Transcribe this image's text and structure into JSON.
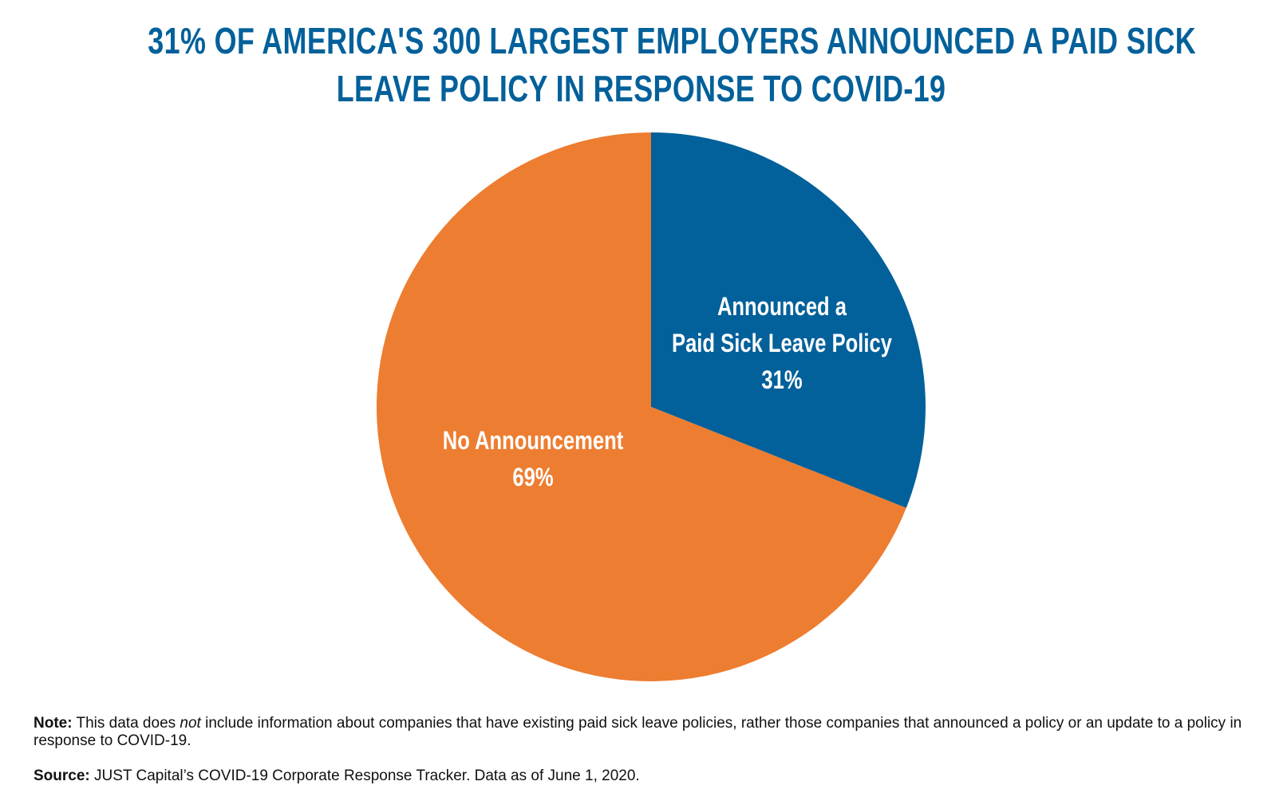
{
  "chart_data": {
    "type": "pie",
    "title": [
      "31% OF AMERICA'S 300 LARGEST EMPLOYERS ANNOUNCED A PAID SICK",
      "LEAVE POLICY IN RESPONSE TO COVID-19"
    ],
    "slices": [
      {
        "label": [
          "Announced a",
          "Paid Sick Leave Policy"
        ],
        "value": 31,
        "value_label": "31%",
        "color": "#02609a"
      },
      {
        "label": [
          "No Announcement"
        ],
        "value": 69,
        "value_label": "69%",
        "color": "#ed7d31"
      }
    ],
    "start_angle": "12 o'clock, clockwise"
  },
  "footer": {
    "note_label": "Note:",
    "note_pre": "This data does",
    "note_em": "not",
    "note_post": "include information about companies that have existing paid sick leave policies, rather those companies that announced a policy or an update to a policy in response to COVID-19.",
    "source_label": "Source:",
    "source_text": "JUST Capital’s COVID-19 Corporate Response Tracker. Data as of June 1, 2020."
  }
}
